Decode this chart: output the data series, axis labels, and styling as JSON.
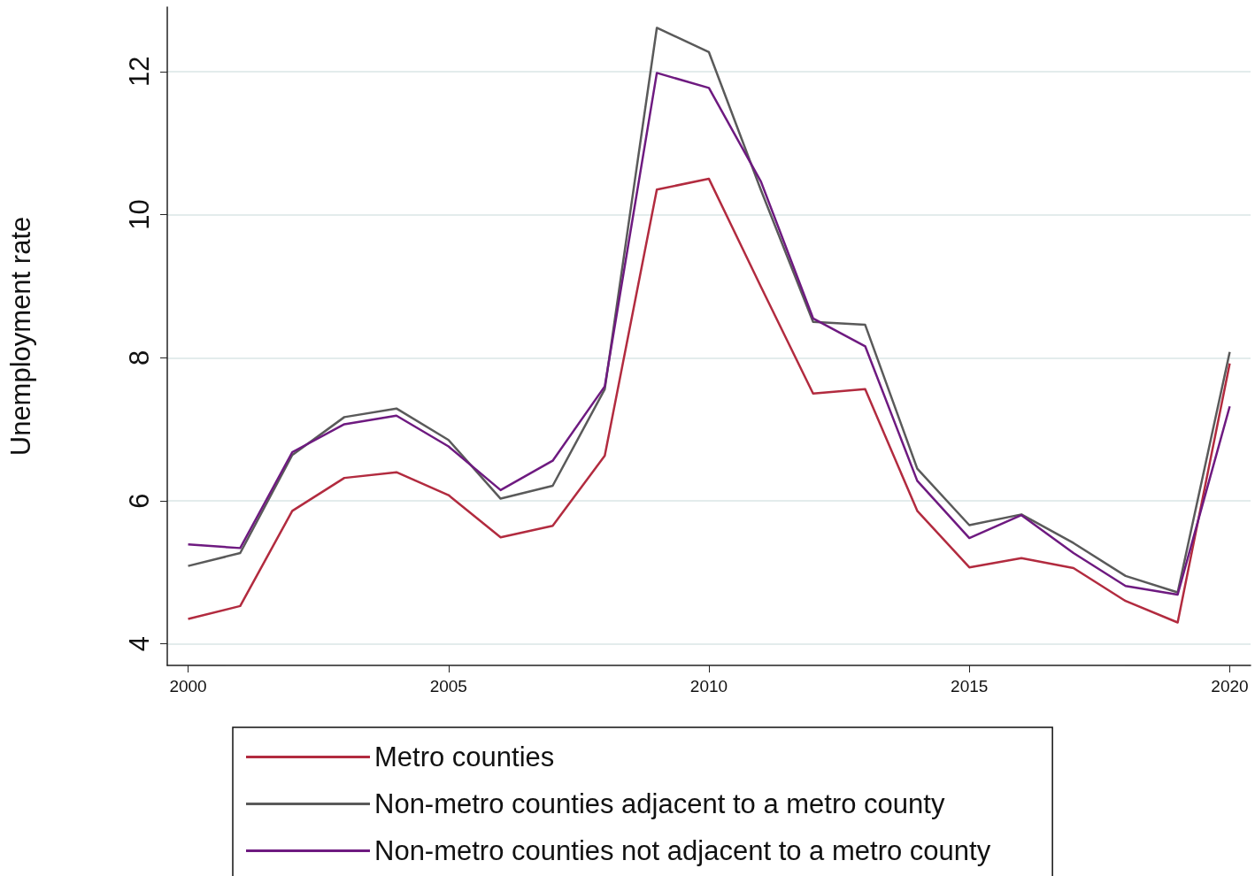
{
  "chart_data": {
    "type": "line",
    "ylabel": "Unemployment rate",
    "x": [
      2000,
      2001,
      2002,
      2003,
      2004,
      2005,
      2006,
      2007,
      2008,
      2009,
      2010,
      2011,
      2012,
      2013,
      2014,
      2015,
      2016,
      2017,
      2018,
      2019,
      2020
    ],
    "series": [
      {
        "name": "Metro counties",
        "color": "#b22b3f",
        "values": [
          4.35,
          4.53,
          5.86,
          6.32,
          6.4,
          6.08,
          5.49,
          5.65,
          6.63,
          10.35,
          10.5,
          8.99,
          7.5,
          7.56,
          5.86,
          5.07,
          5.2,
          5.06,
          4.6,
          4.3,
          7.92
        ]
      },
      {
        "name": "Non-metro counties adjacent to a metro county",
        "color": "#5a5a5a",
        "values": [
          5.09,
          5.27,
          6.64,
          7.17,
          7.29,
          6.85,
          6.03,
          6.21,
          7.56,
          12.61,
          12.27,
          10.34,
          8.5,
          8.46,
          6.45,
          5.66,
          5.81,
          5.41,
          4.95,
          4.72,
          8.08
        ]
      },
      {
        "name": "Non-metro counties not adjacent to a metro county",
        "color": "#6e1a80",
        "values": [
          5.39,
          5.34,
          6.68,
          7.07,
          7.19,
          6.76,
          6.15,
          6.56,
          7.6,
          11.98,
          11.77,
          10.46,
          8.55,
          8.16,
          6.28,
          5.48,
          5.8,
          5.27,
          4.81,
          4.69,
          7.32
        ]
      }
    ],
    "xlim": [
      1999.6,
      2020.4
    ],
    "xticks": [
      2000,
      2005,
      2010,
      2015,
      2020
    ],
    "ylim": [
      3.7,
      12.9
    ],
    "yticks": [
      4,
      6,
      8,
      10,
      12
    ],
    "grid": "y",
    "legend": "bottom",
    "marker": "none",
    "line_style": "solid"
  }
}
